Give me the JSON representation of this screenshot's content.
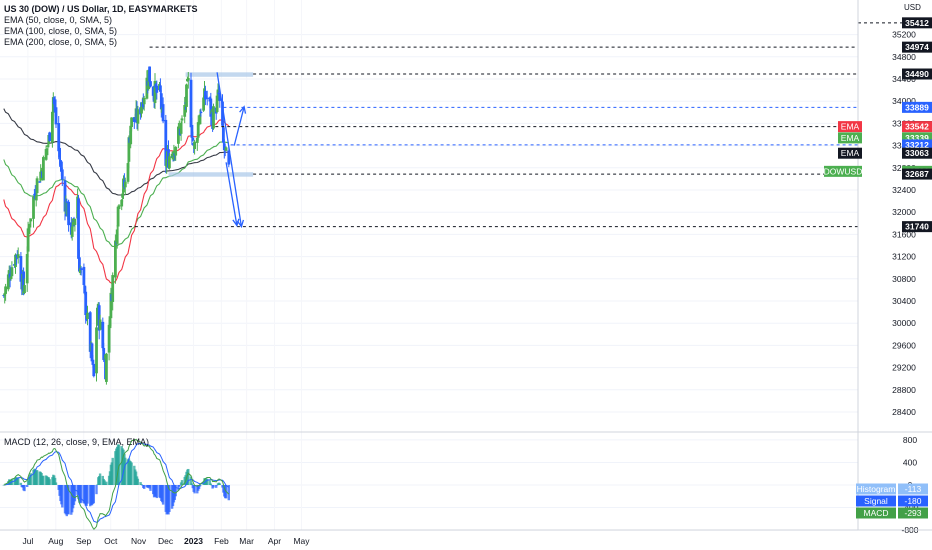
{
  "header": {
    "symbol_title": "US 30 (DOW) / US Dollar, 1D, EASYMARKETS",
    "indicators": [
      "EMA (50, close, 0, SMA, 5)",
      "EMA (100, close, 0, SMA, 5)",
      "EMA (200, close, 0, SMA, 5)"
    ],
    "currency": "USD"
  },
  "macd_title": "MACD (12, 26, close, 9, EMA, EMA)",
  "colors": {
    "up": "#4caf50",
    "down": "#2962ff",
    "ema50": "#f23645",
    "ema100": "#4caf50",
    "ema200": "#363a45",
    "annotation": "#2962ff",
    "zone": "#a9c8e8",
    "macd_line": "#43a047",
    "signal_line": "#2962ff",
    "last_price": "#4caf50"
  },
  "price_labels": [
    {
      "text": "35412",
      "kind": "dashed-black"
    },
    {
      "text": "34974",
      "kind": "dashed-black"
    },
    {
      "text": "34490",
      "kind": "dashed-black"
    },
    {
      "text": "33889",
      "kind": "blue"
    },
    {
      "text": "33543",
      "kind": "black"
    },
    {
      "text": "EMA",
      "value": "33542",
      "kind": "red"
    },
    {
      "text": "EMA",
      "value": "33339",
      "kind": "green"
    },
    {
      "text": "33212",
      "kind": "blue"
    },
    {
      "text": "EMA",
      "value": "33063",
      "kind": "black"
    },
    {
      "text": "DOWUSD",
      "value": "32736",
      "kind": "green"
    },
    {
      "text": "32687",
      "kind": "black"
    },
    {
      "text": "31740",
      "kind": "black"
    }
  ],
  "macd_labels": [
    {
      "name": "Histogram",
      "value": "-113",
      "color": "#90bff9"
    },
    {
      "name": "Signal",
      "value": "-180",
      "color": "#2962ff"
    },
    {
      "name": "MACD",
      "value": "-293",
      "color": "#43a047"
    }
  ],
  "chart_data": {
    "type": "candlestick",
    "x_ticks": [
      "Jul",
      "Aug",
      "Sep",
      "Oct",
      "Nov",
      "Dec",
      "2023",
      "Feb",
      "Mar",
      "Apr",
      "May"
    ],
    "y_ticks": [
      28400,
      28800,
      29200,
      29600,
      30000,
      30400,
      30800,
      31200,
      31600,
      32000,
      32400,
      32800,
      33200,
      33600,
      34000,
      34400,
      34800,
      35200
    ],
    "ylim": [
      28300,
      35300
    ],
    "macd_ticks": [
      800,
      400,
      0,
      -400,
      -800
    ],
    "macd_ylim": [
      -900,
      900
    ],
    "levels": [
      34974,
      34490,
      33889,
      33543,
      33212,
      32687,
      31740
    ],
    "close_path": [
      {
        "date": "2022-06-22",
        "value": 30500
      },
      {
        "date": "2022-06-30",
        "value": 31000
      },
      {
        "date": "2022-07-07",
        "value": 31300
      },
      {
        "date": "2022-07-14",
        "value": 30600
      },
      {
        "date": "2022-07-21",
        "value": 31900
      },
      {
        "date": "2022-07-28",
        "value": 32500
      },
      {
        "date": "2022-08-04",
        "value": 32800
      },
      {
        "date": "2022-08-11",
        "value": 33300
      },
      {
        "date": "2022-08-16",
        "value": 34100
      },
      {
        "date": "2022-08-22",
        "value": 33100
      },
      {
        "date": "2022-08-29",
        "value": 32200
      },
      {
        "date": "2022-09-06",
        "value": 31600
      },
      {
        "date": "2022-09-12",
        "value": 32300
      },
      {
        "date": "2022-09-13",
        "value": 31200
      },
      {
        "date": "2022-09-21",
        "value": 30300
      },
      {
        "date": "2022-09-30",
        "value": 29000
      },
      {
        "date": "2022-10-04",
        "value": 30300
      },
      {
        "date": "2022-10-13",
        "value": 29200
      },
      {
        "date": "2022-10-20",
        "value": 30600
      },
      {
        "date": "2022-10-28",
        "value": 32300
      },
      {
        "date": "2022-11-04",
        "value": 32500
      },
      {
        "date": "2022-11-10",
        "value": 33600
      },
      {
        "date": "2022-11-18",
        "value": 33700
      },
      {
        "date": "2022-11-30",
        "value": 34500
      },
      {
        "date": "2022-12-05",
        "value": 34200
      },
      {
        "date": "2022-12-13",
        "value": 34100
      },
      {
        "date": "2022-12-19",
        "value": 32900
      },
      {
        "date": "2022-12-29",
        "value": 33200
      },
      {
        "date": "2023-01-06",
        "value": 33600
      },
      {
        "date": "2023-01-13",
        "value": 34300
      },
      {
        "date": "2023-01-19",
        "value": 33100
      },
      {
        "date": "2023-01-27",
        "value": 33900
      },
      {
        "date": "2023-02-02",
        "value": 34100
      },
      {
        "date": "2023-02-09",
        "value": 33700
      },
      {
        "date": "2023-02-16",
        "value": 34100
      },
      {
        "date": "2023-02-21",
        "value": 33200
      },
      {
        "date": "2023-02-27",
        "value": 32736
      }
    ],
    "series": [
      {
        "name": "EMA (50, close, 0, SMA, 5)",
        "last": 33542
      },
      {
        "name": "EMA (100, close, 0, SMA, 5)",
        "last": 33339
      },
      {
        "name": "EMA (200, close, 0, SMA, 5)",
        "last": 33063
      },
      {
        "name": "DOWUSD",
        "last": 32736
      },
      {
        "name": "Histogram",
        "last": -113
      },
      {
        "name": "Signal",
        "last": -180
      },
      {
        "name": "MACD",
        "last": -293
      }
    ]
  }
}
